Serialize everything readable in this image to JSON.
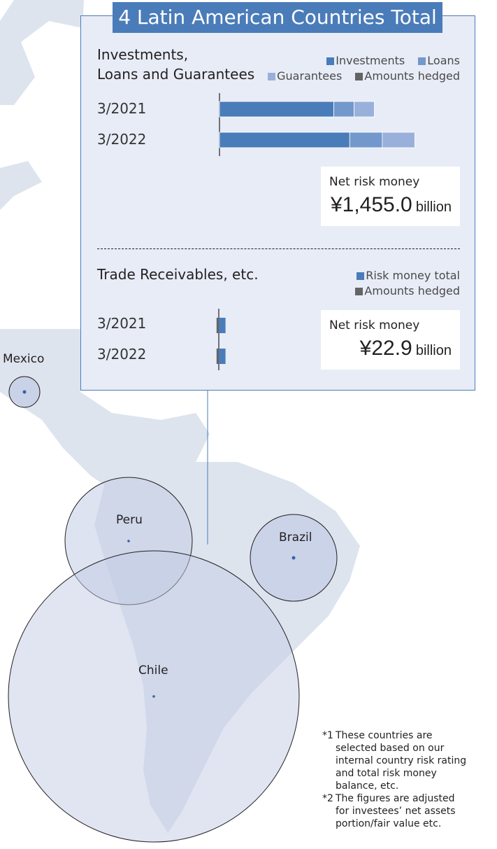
{
  "title": "4 Latin American Countries Total",
  "section1": {
    "title_line1": "Investments,",
    "title_line2": "Loans and Guarantees",
    "legend": [
      "Investments",
      "Loans",
      "Guarantees",
      "Amounts hedged"
    ],
    "net_label": "Net risk money",
    "net_value": "¥1,455.0",
    "net_unit": "billion"
  },
  "section2": {
    "title": "Trade Receivables, etc.",
    "legend": [
      "Risk money total",
      "Amounts hedged"
    ],
    "net_label": "Net risk money",
    "net_value": "¥22.9",
    "net_unit": "billion"
  },
  "periods": [
    "3/2021",
    "3/2022"
  ],
  "countries": [
    "Mexico",
    "Peru",
    "Brazil",
    "Chile"
  ],
  "notes": [
    {
      "mark": "*1",
      "lines": [
        "These countries are",
        "selected based on our",
        "internal country risk rating",
        "and total risk money",
        "balance, etc."
      ]
    },
    {
      "mark": "*2",
      "lines": [
        "The figures are adjusted",
        "for investees’ net assets",
        "portion/fair value etc."
      ]
    }
  ],
  "colors": {
    "investments": "#4a7cb9",
    "loans": "#7398cb",
    "guarantees": "#99b1da",
    "risk_money_total": "#4a7cb9",
    "amounts_hedged": "#646464",
    "panel_bg": "#e7ecf6",
    "circle_fill": "#c3cce6"
  },
  "chart_data": [
    {
      "type": "bar",
      "orientation": "horizontal",
      "stacked": true,
      "title": "Investments, Loans and Guarantees",
      "categories": [
        "3/2021",
        "3/2022"
      ],
      "series": [
        {
          "name": "Investments",
          "values": [
            790,
            900
          ]
        },
        {
          "name": "Loans",
          "values": [
            140,
            225
          ]
        },
        {
          "name": "Guarantees",
          "values": [
            140,
            225
          ]
        }
      ],
      "unit": "¥ billion (approx.)",
      "legend": "top-right"
    },
    {
      "type": "bar",
      "orientation": "horizontal",
      "stacked": true,
      "title": "Trade Receivables, etc.",
      "categories": [
        "3/2021",
        "3/2022"
      ],
      "series": [
        {
          "name": "Risk money total",
          "values": [
            12,
            12
          ]
        },
        {
          "name": "Amounts hedged",
          "values": [
            4,
            4
          ]
        }
      ],
      "unit": "¥ billion (approx.)",
      "legend": "top-right"
    }
  ]
}
